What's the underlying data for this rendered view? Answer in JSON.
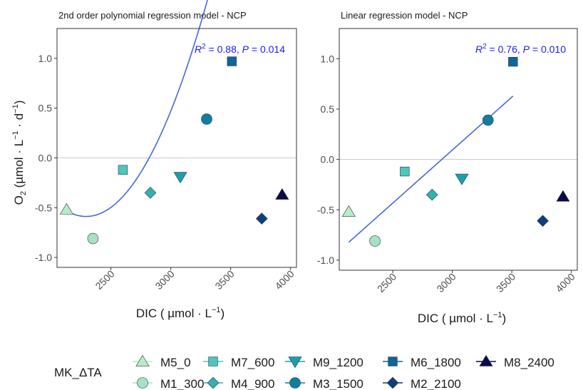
{
  "colors": {
    "fit_line": "#4169E1",
    "annotation": "#1a1aff",
    "hline": "#c8c8c8",
    "axis": "#333333",
    "tick_text": "#4d4d4d",
    "marker_outline": "#333333"
  },
  "legend": {
    "title": "MK_ΔTA",
    "items": [
      {
        "name": "M5_0",
        "shape": "triangle-up",
        "color": "#b8ecc6"
      },
      {
        "name": "M1_300",
        "shape": "circle",
        "color": "#a6e2c3"
      },
      {
        "name": "M7_600",
        "shape": "square",
        "color": "#4dc6bf"
      },
      {
        "name": "M4_900",
        "shape": "diamond",
        "color": "#2fb2b3"
      },
      {
        "name": "M9_1200",
        "shape": "triangle-down",
        "color": "#1a9fb1"
      },
      {
        "name": "M3_1500",
        "shape": "circle",
        "color": "#0f7fa0"
      },
      {
        "name": "M6_1800",
        "shape": "square",
        "color": "#0e6599"
      },
      {
        "name": "M2_2100",
        "shape": "diamond",
        "color": "#0d3f7d"
      },
      {
        "name": "M8_2400",
        "shape": "triangle-up",
        "color": "#0a0b4a"
      }
    ]
  },
  "chart_data": [
    {
      "type": "scatter",
      "title": "2nd order polynomial regression model - NCP",
      "xlabel": "DIC ( µmol · L⁻¹)",
      "ylabel": "O₂ (µmol · L⁻¹ · d⁻¹)",
      "xlim": [
        2050,
        4050
      ],
      "ylim": [
        -1.1,
        1.3
      ],
      "xticks": [
        2500,
        3000,
        3500,
        4000
      ],
      "yticks": [
        -1.0,
        -0.5,
        0.0,
        0.5,
        1.0
      ],
      "ytick_labels": [
        "-1.0",
        "-0.5",
        "0.0",
        "0.5",
        "1.0"
      ],
      "hline": 0,
      "annotation": {
        "r2": "0.88",
        "p": "0.014"
      },
      "points": [
        {
          "name": "M5_0",
          "x": 2130,
          "y": -0.52
        },
        {
          "name": "M1_300",
          "x": 2350,
          "y": -0.81
        },
        {
          "name": "M7_600",
          "x": 2600,
          "y": -0.12
        },
        {
          "name": "M4_900",
          "x": 2830,
          "y": -0.35
        },
        {
          "name": "M9_1200",
          "x": 3080,
          "y": -0.19
        },
        {
          "name": "M3_1500",
          "x": 3300,
          "y": 0.39
        },
        {
          "name": "M6_1800",
          "x": 3510,
          "y": 0.97
        },
        {
          "name": "M2_2100",
          "x": 3760,
          "y": -0.61
        },
        {
          "name": "M8_2400",
          "x": 3930,
          "y": -0.37
        }
      ],
      "fit": {
        "model": "quadratic",
        "coefficients": [
          2.1156e-06,
          -0.0097,
          10.53
        ],
        "x_range": [
          2130,
          3510
        ]
      }
    },
    {
      "type": "scatter",
      "title": "Linear regression model - NCP",
      "xlabel": "DIC ( µmol · L⁻¹)",
      "ylabel": "",
      "xlim": [
        2050,
        4050
      ],
      "ylim": [
        -1.1,
        1.3
      ],
      "xticks": [
        2500,
        3000,
        3500,
        4000
      ],
      "yticks": [
        -1.0,
        -0.5,
        0.0,
        0.5,
        1.0
      ],
      "ytick_labels": [
        "-1.0",
        "-0.5",
        "0.0",
        "0.5",
        "1.0"
      ],
      "hline": 0,
      "annotation": {
        "r2": "0.76",
        "p": "0.010"
      },
      "points": [
        {
          "name": "M5_0",
          "x": 2130,
          "y": -0.52
        },
        {
          "name": "M1_300",
          "x": 2350,
          "y": -0.81
        },
        {
          "name": "M7_600",
          "x": 2600,
          "y": -0.12
        },
        {
          "name": "M4_900",
          "x": 2830,
          "y": -0.35
        },
        {
          "name": "M9_1200",
          "x": 3080,
          "y": -0.19
        },
        {
          "name": "M3_1500",
          "x": 3300,
          "y": 0.39
        },
        {
          "name": "M6_1800",
          "x": 3510,
          "y": 0.97
        },
        {
          "name": "M2_2100",
          "x": 3760,
          "y": -0.61
        },
        {
          "name": "M8_2400",
          "x": 3930,
          "y": -0.37
        }
      ],
      "fit": {
        "model": "linear",
        "coefficients": [
          0.001052,
          -3.063
        ],
        "x_range": [
          2130,
          3510
        ]
      }
    }
  ]
}
